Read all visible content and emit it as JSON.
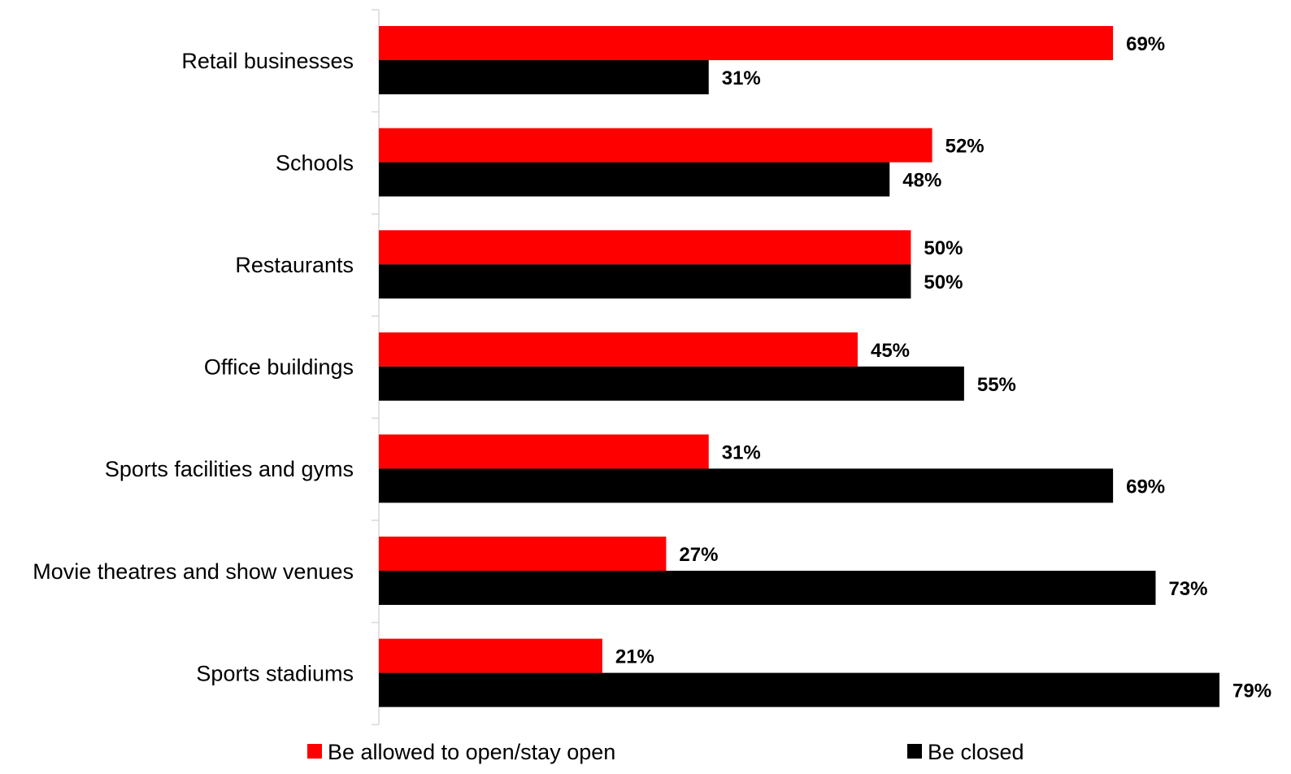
{
  "chart_data": {
    "type": "bar",
    "orientation": "horizontal",
    "title": "",
    "xlabel": "",
    "ylabel": "",
    "xlim": [
      0,
      79
    ],
    "grid": false,
    "legend_position": "bottom",
    "categories": [
      "Retail businesses",
      "Schools",
      "Restaurants",
      "Office buildings",
      "Sports facilities and gyms",
      "Movie theatres and show venues",
      "Sports stadiums"
    ],
    "series": [
      {
        "name": "Be allowed to open/stay open",
        "color": "#ff0000",
        "values": [
          69,
          52,
          50,
          45,
          31,
          27,
          21
        ],
        "labels": [
          "69%",
          "52%",
          "50%",
          "45%",
          "31%",
          "27%",
          "21%"
        ]
      },
      {
        "name": "Be closed",
        "color": "#000000",
        "values": [
          31,
          48,
          50,
          55,
          69,
          73,
          79
        ],
        "labels": [
          "31%",
          "48%",
          "50%",
          "55%",
          "69%",
          "73%",
          "79%"
        ]
      }
    ]
  }
}
